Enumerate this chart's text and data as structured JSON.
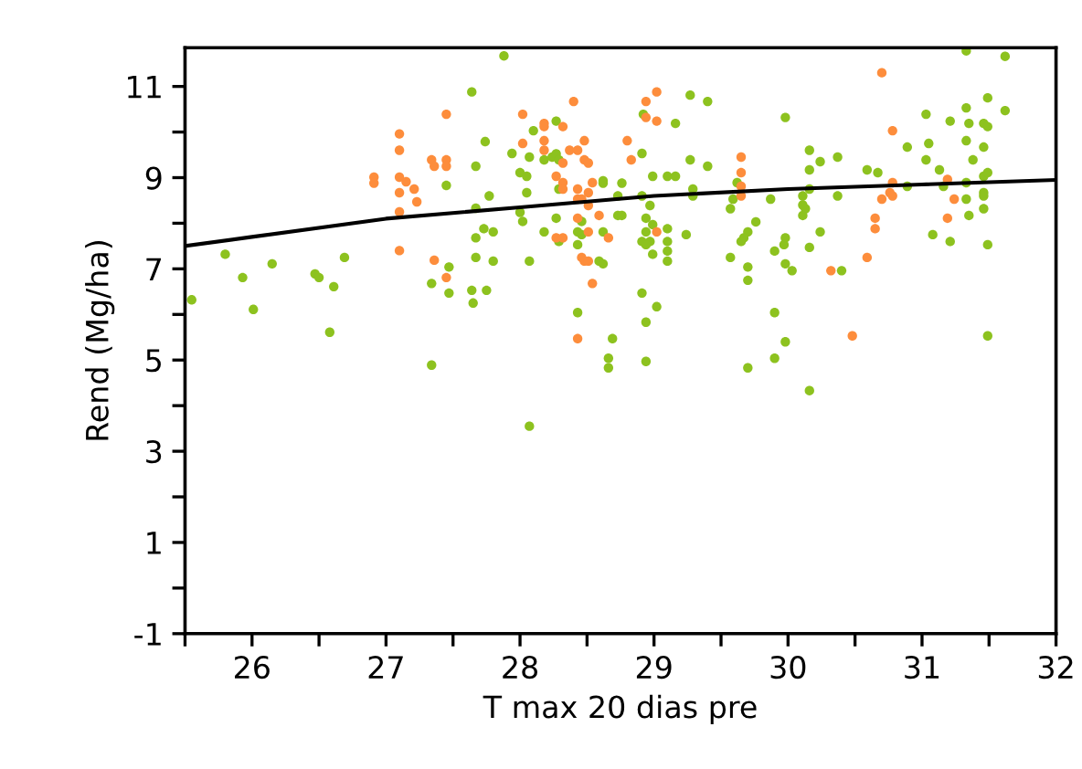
{
  "chart_data": {
    "type": "scatter",
    "xlabel": "T max 20 dias pre",
    "ylabel": "Rend (Mg/ha)",
    "xlim": [
      25.5,
      32
    ],
    "ylim": [
      -1,
      11.85
    ],
    "xticks": [
      {
        "value": 25.5,
        "label": null
      },
      26,
      {
        "value": 26.5,
        "label": null
      },
      27,
      {
        "value": 27.5,
        "label": null
      },
      28,
      {
        "value": 28.5,
        "label": null
      },
      29,
      {
        "value": 29.5,
        "label": null
      },
      30,
      {
        "value": 30.5,
        "label": null
      },
      31,
      {
        "value": 31.5,
        "label": null
      },
      32
    ],
    "yticks": [
      -1,
      {
        "value": 0,
        "label": null
      },
      1,
      {
        "value": 2,
        "label": null
      },
      3,
      {
        "value": 4,
        "label": null
      },
      5,
      {
        "value": 6,
        "label": null
      },
      7,
      {
        "value": 8,
        "label": null
      },
      9,
      {
        "value": 10,
        "label": null
      },
      11
    ],
    "grid": false,
    "legend": false,
    "marker": "circle",
    "series": [
      {
        "color": "#8dc21f",
        "x": [
          27.64,
          25.55,
          25.8,
          25.93,
          26.01,
          26.15,
          26.47,
          26.5,
          26.61,
          26.69,
          26.58,
          27.34,
          27.34,
          27.47,
          27.47,
          27.45,
          27.67,
          27.67,
          27.67,
          27.64,
          27.65,
          27.74,
          27.67,
          27.73,
          27.88,
          27.77,
          27.8,
          27.8,
          27.75,
          28.1,
          28.27,
          27.94,
          28.07,
          28.0,
          28.05,
          28.18,
          28.24,
          28.27,
          28.29,
          28.05,
          28.0,
          28.02,
          28.07,
          28.18,
          28.27,
          28.29,
          28.29,
          28.43,
          28.46,
          28.43,
          28.43,
          28.07,
          28.46,
          28.62,
          28.62,
          28.76,
          28.73,
          28.73,
          28.76,
          28.62,
          28.59,
          28.62,
          28.69,
          28.66,
          28.66,
          28.92,
          28.91,
          28.99,
          29.1,
          29.16,
          29.16,
          29.27,
          29.4,
          29.27,
          29.4,
          29.29,
          29.29,
          28.91,
          28.97,
          28.94,
          28.99,
          28.94,
          28.91,
          28.97,
          28.94,
          29.1,
          29.1,
          29.1,
          29.1,
          28.99,
          29.24,
          28.91,
          29.02,
          28.94,
          28.94,
          29.57,
          29.62,
          29.59,
          29.76,
          29.7,
          29.67,
          29.65,
          29.57,
          29.7,
          29.7,
          29.7,
          29.87,
          29.9,
          29.9,
          29.9,
          31.33,
          31.62,
          29.98,
          30.16,
          30.16,
          30.24,
          30.37,
          30.11,
          30.11,
          30.11,
          30.13,
          30.16,
          30.37,
          30.24,
          29.98,
          29.97,
          30.16,
          29.98,
          30.03,
          30.4,
          29.98,
          30.16,
          30.59,
          30.67,
          30.89,
          30.89,
          31.03,
          31.05,
          31.03,
          31.13,
          31.16,
          31.08,
          31.21,
          31.21,
          31.33,
          31.35,
          31.33,
          31.38,
          31.33,
          31.33,
          31.35,
          31.46,
          31.49,
          31.49,
          31.46,
          31.46,
          31.49,
          31.46,
          31.46,
          31.46,
          31.49,
          31.49,
          31.62
        ],
        "values": [
          10.88,
          6.32,
          7.32,
          6.81,
          6.11,
          7.11,
          6.89,
          6.81,
          6.61,
          7.25,
          5.61,
          4.89,
          6.68,
          7.04,
          6.47,
          8.83,
          9.25,
          7.68,
          7.25,
          6.53,
          6.25,
          9.79,
          8.33,
          7.88,
          11.67,
          8.6,
          7.81,
          7.17,
          6.53,
          10.03,
          10.24,
          9.53,
          9.45,
          9.11,
          9.03,
          9.39,
          9.45,
          9.52,
          9.39,
          8.67,
          8.24,
          8.04,
          7.17,
          7.81,
          8.11,
          8.75,
          7.6,
          7.81,
          7.75,
          7.53,
          6.04,
          3.55,
          8.04,
          8.93,
          8.88,
          8.88,
          8.6,
          8.17,
          8.17,
          7.81,
          7.17,
          7.11,
          5.47,
          5.04,
          4.83,
          10.39,
          9.53,
          9.03,
          9.03,
          9.03,
          10.19,
          10.81,
          10.67,
          9.39,
          9.25,
          8.75,
          8.6,
          8.6,
          8.39,
          8.11,
          7.97,
          7.81,
          7.6,
          7.6,
          7.53,
          7.88,
          7.6,
          7.39,
          7.17,
          7.32,
          7.75,
          6.47,
          6.17,
          5.83,
          4.97,
          8.32,
          8.89,
          8.53,
          8.03,
          7.81,
          7.68,
          7.6,
          7.25,
          7.04,
          6.75,
          4.83,
          8.53,
          7.39,
          6.04,
          5.04,
          11.78,
          11.66,
          10.32,
          9.6,
          9.17,
          9.35,
          9.45,
          8.6,
          8.4,
          8.17,
          8.32,
          8.75,
          8.6,
          7.81,
          7.68,
          7.53,
          7.47,
          7.11,
          6.96,
          6.96,
          5.4,
          4.33,
          9.17,
          9.11,
          9.67,
          8.81,
          10.39,
          9.75,
          9.39,
          9.17,
          8.81,
          7.75,
          10.24,
          7.6,
          10.53,
          10.19,
          9.81,
          9.39,
          8.89,
          8.53,
          8.17,
          10.19,
          10.12,
          10.75,
          9.67,
          9.03,
          9.11,
          8.67,
          8.6,
          8.32,
          7.53,
          5.53,
          10.47
        ]
      },
      {
        "color": "#fd8d3c",
        "x": [
          27.45,
          27.1,
          27.1,
          26.91,
          26.91,
          27.1,
          27.15,
          27.21,
          27.1,
          27.23,
          27.1,
          27.34,
          27.36,
          27.45,
          27.45,
          27.1,
          27.36,
          27.45,
          28.4,
          28.02,
          28.18,
          28.18,
          28.32,
          28.02,
          28.18,
          28.18,
          28.37,
          28.43,
          28.48,
          28.32,
          28.48,
          28.51,
          28.27,
          28.32,
          28.32,
          28.43,
          28.54,
          28.51,
          28.43,
          28.46,
          28.51,
          28.59,
          28.43,
          28.51,
          28.27,
          28.32,
          28.66,
          28.46,
          28.48,
          28.51,
          28.54,
          28.43,
          28.8,
          28.83,
          28.94,
          29.02,
          28.94,
          29.02,
          29.02,
          29.65,
          29.65,
          29.65,
          29.65,
          30.7,
          30.78,
          30.78,
          30.7,
          30.76,
          30.78,
          30.65,
          30.65,
          30.59,
          30.32,
          30.48,
          31.19,
          31.24,
          31.19
        ],
        "values": [
          10.39,
          9.96,
          9.6,
          9.01,
          8.88,
          9.01,
          8.91,
          8.75,
          8.67,
          8.47,
          8.25,
          9.39,
          9.25,
          9.39,
          9.25,
          7.4,
          7.19,
          6.81,
          10.67,
          10.39,
          10.19,
          10.12,
          10.12,
          9.75,
          9.81,
          9.6,
          9.6,
          9.6,
          9.81,
          9.32,
          9.39,
          9.32,
          9.03,
          8.89,
          8.75,
          8.75,
          8.89,
          8.67,
          8.53,
          8.53,
          8.39,
          8.17,
          8.11,
          7.81,
          7.68,
          7.68,
          7.68,
          7.25,
          7.17,
          7.17,
          6.68,
          5.47,
          9.81,
          9.39,
          10.67,
          10.88,
          10.32,
          10.24,
          7.81,
          9.45,
          9.11,
          8.81,
          8.6,
          11.3,
          10.03,
          8.89,
          8.53,
          8.67,
          8.6,
          8.11,
          7.88,
          7.25,
          6.96,
          5.53,
          8.96,
          8.53,
          8.11
        ]
      },
      {
        "type": "line",
        "color": "#000000",
        "marker": "none",
        "line_style": "solid",
        "x": [
          25.5,
          26,
          27,
          28,
          29,
          30,
          31,
          32
        ],
        "values": [
          7.5,
          7.7,
          8.1,
          8.35,
          8.6,
          8.75,
          8.85,
          8.95
        ]
      }
    ]
  }
}
